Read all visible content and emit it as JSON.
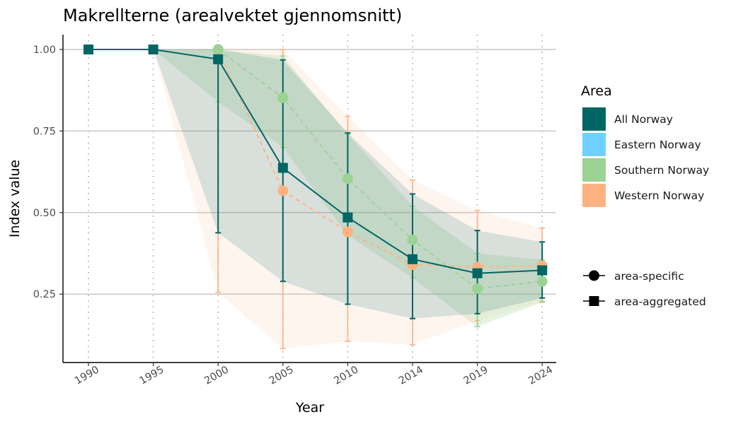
{
  "chart_data": {
    "type": "line",
    "title": "Makrellterne (arealvektet gjennomsnitt)",
    "xlabel": "Year",
    "ylabel": "Index value",
    "x": [
      "1990",
      "1995",
      "2000",
      "2005",
      "2010",
      "2014",
      "2019",
      "2024"
    ],
    "y_ticks": [
      "0.25",
      "0.50",
      "0.75",
      "1.00"
    ],
    "ylim": [
      0.07,
      1.045
    ],
    "grid": "horizontal major lines; dotted vertical lines at each year",
    "legend_placement": "right",
    "legend_area_title": "Area",
    "legend_area": [
      {
        "label": "All Norway",
        "color": "#006663"
      },
      {
        "label": "Eastern Norway",
        "color": "#6fd1ff"
      },
      {
        "label": "Southern Norway",
        "color": "#9ad393"
      },
      {
        "label": "Western Norway",
        "color": "#ffb281"
      }
    ],
    "legend_shape": [
      {
        "label": "area-specific",
        "shape": "circle"
      },
      {
        "label": "area-aggregated",
        "shape": "square"
      }
    ],
    "series": [
      {
        "name": "Western Norway",
        "kind": "area-specific",
        "color": "#ffb281",
        "values": [
          null,
          null,
          1.0,
          0.567,
          0.441,
          0.34,
          0.333,
          0.337
        ],
        "lower": [
          null,
          null,
          0.255,
          0.083,
          0.105,
          0.095,
          0.168,
          0.228
        ],
        "upper": [
          null,
          null,
          1.0,
          1.0,
          0.795,
          0.6,
          0.507,
          0.452
        ],
        "ribbon_lower": [
          null,
          1.0,
          0.255,
          0.083,
          0.105,
          0.095,
          0.168,
          0.228
        ],
        "ribbon_upper": [
          null,
          1.0,
          1.0,
          1.0,
          0.795,
          0.6,
          0.507,
          0.452
        ]
      },
      {
        "name": "Southern Norway",
        "kind": "area-specific",
        "color": "#9ad393",
        "values": [
          null,
          null,
          1.0,
          0.852,
          0.604,
          0.416,
          0.267,
          0.289
        ],
        "lower": [
          null,
          null,
          0.84,
          0.7,
          0.43,
          0.3,
          0.15,
          0.225
        ],
        "upper": [
          null,
          null,
          1.0,
          0.98,
          0.74,
          0.52,
          0.375,
          0.355
        ],
        "ribbon_lower": [
          null,
          1.0,
          0.84,
          0.7,
          0.43,
          0.3,
          0.15,
          0.225
        ],
        "ribbon_upper": [
          null,
          1.0,
          1.0,
          0.98,
          0.74,
          0.52,
          0.375,
          0.355
        ]
      },
      {
        "name": "All Norway",
        "kind": "area-aggregated",
        "color": "#006663",
        "values": [
          1.0,
          1.0,
          0.97,
          0.637,
          0.485,
          0.357,
          0.314,
          0.323
        ],
        "lower": [
          null,
          null,
          0.438,
          0.289,
          0.219,
          0.175,
          0.19,
          0.238
        ],
        "upper": [
          null,
          null,
          1.0,
          0.968,
          0.744,
          0.557,
          0.445,
          0.41
        ],
        "ribbon_lower": [
          null,
          1.0,
          0.438,
          0.289,
          0.219,
          0.175,
          0.19,
          0.238
        ],
        "ribbon_upper": [
          null,
          1.0,
          1.0,
          0.968,
          0.744,
          0.557,
          0.445,
          0.41
        ]
      }
    ]
  }
}
